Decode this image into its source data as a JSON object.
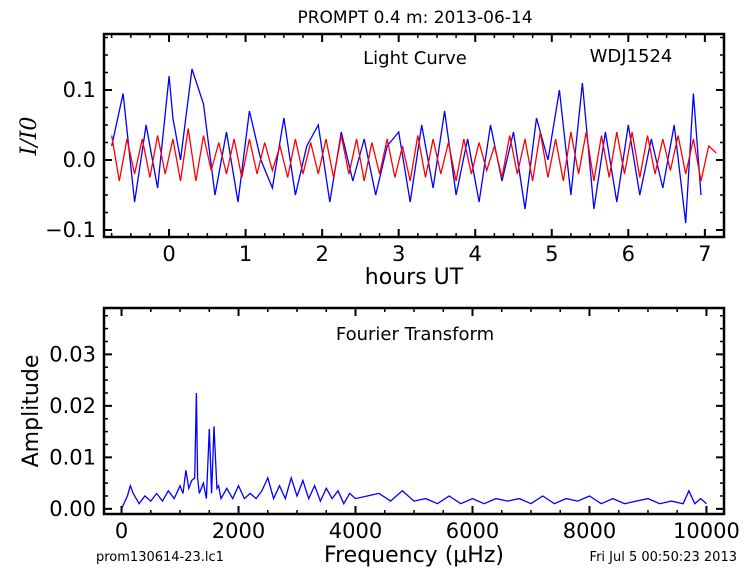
{
  "figure": {
    "title": "PROMPT 0.4 m:  2013-06-14",
    "footer_left": "prom130614-23.lc1",
    "footer_right": "Fri Jul  5 00:50:23 2013"
  },
  "chart_data": [
    {
      "type": "line",
      "title": "Light Curve",
      "annotation": "WDJ1524",
      "xlabel": "hours UT",
      "ylabel": "I/I0",
      "xlim": [
        -0.85,
        7.25
      ],
      "ylim": [
        -0.11,
        0.18
      ],
      "xticks": [
        0,
        1,
        2,
        3,
        4,
        5,
        6,
        7
      ],
      "xtick_labels": [
        "0",
        "1",
        "2",
        "3",
        "4",
        "5",
        "6",
        "7"
      ],
      "yticks": [
        -0.1,
        0.0,
        0.1
      ],
      "ytick_labels": [
        "−0.1",
        "0.0",
        "0.1"
      ],
      "series": [
        {
          "color": "#0000ff",
          "x": [
            -0.75,
            -0.6,
            -0.45,
            -0.3,
            -0.15,
            0.0,
            0.05,
            0.15,
            0.3,
            0.45,
            0.6,
            0.75,
            0.9,
            1.05,
            1.2,
            1.35,
            1.5,
            1.65,
            1.8,
            1.95,
            2.1,
            2.25,
            2.4,
            2.55,
            2.7,
            2.85,
            3.0,
            3.15,
            3.3,
            3.45,
            3.6,
            3.75,
            3.9,
            4.05,
            4.2,
            4.35,
            4.5,
            4.65,
            4.8,
            4.95,
            5.1,
            5.25,
            5.4,
            5.55,
            5.7,
            5.85,
            6.0,
            6.15,
            6.3,
            6.45,
            6.6,
            6.75,
            6.85,
            6.95
          ],
          "y": [
            0.02,
            0.095,
            -0.06,
            0.05,
            -0.04,
            0.12,
            0.06,
            0.0,
            0.13,
            0.08,
            -0.05,
            0.04,
            -0.06,
            0.07,
            0.0,
            -0.04,
            0.06,
            -0.05,
            0.02,
            0.05,
            -0.06,
            0.04,
            -0.03,
            0.03,
            -0.05,
            0.02,
            0.04,
            -0.06,
            0.05,
            -0.04,
            0.07,
            -0.05,
            0.03,
            -0.06,
            0.05,
            -0.03,
            0.04,
            -0.07,
            0.06,
            0.0,
            0.1,
            -0.05,
            0.11,
            -0.07,
            0.04,
            -0.06,
            0.05,
            -0.05,
            0.03,
            -0.04,
            0.05,
            -0.09,
            0.095,
            -0.05
          ]
        },
        {
          "color": "#ff0000",
          "x": [
            -0.75,
            -0.65,
            -0.55,
            -0.45,
            -0.35,
            -0.25,
            -0.15,
            -0.05,
            0.05,
            0.15,
            0.25,
            0.35,
            0.45,
            0.55,
            0.65,
            0.75,
            0.85,
            0.95,
            1.05,
            1.15,
            1.25,
            1.35,
            1.45,
            1.55,
            1.65,
            1.75,
            1.85,
            1.95,
            2.05,
            2.15,
            2.25,
            2.35,
            2.45,
            2.55,
            2.65,
            2.75,
            2.85,
            2.95,
            3.05,
            3.15,
            3.25,
            3.35,
            3.45,
            3.55,
            3.65,
            3.75,
            3.85,
            3.95,
            4.05,
            4.15,
            4.25,
            4.35,
            4.45,
            4.55,
            4.65,
            4.75,
            4.85,
            4.95,
            5.05,
            5.15,
            5.25,
            5.35,
            5.45,
            5.55,
            5.65,
            5.75,
            5.85,
            5.95,
            6.05,
            6.15,
            6.25,
            6.35,
            6.45,
            6.55,
            6.65,
            6.75,
            6.85,
            6.95,
            7.05,
            7.15
          ],
          "y": [
            0.035,
            -0.03,
            0.03,
            -0.02,
            0.03,
            -0.025,
            0.035,
            -0.02,
            0.03,
            -0.03,
            0.045,
            -0.03,
            0.035,
            -0.015,
            0.025,
            -0.02,
            0.03,
            -0.025,
            0.03,
            -0.02,
            0.025,
            -0.015,
            0.02,
            -0.025,
            0.03,
            -0.02,
            0.025,
            -0.02,
            0.03,
            -0.025,
            0.035,
            -0.02,
            0.03,
            -0.03,
            0.025,
            -0.02,
            0.03,
            -0.025,
            0.02,
            -0.03,
            0.035,
            -0.025,
            0.03,
            -0.02,
            0.025,
            -0.03,
            0.03,
            -0.02,
            0.025,
            -0.015,
            0.02,
            -0.025,
            0.035,
            -0.02,
            0.03,
            -0.03,
            0.04,
            -0.025,
            0.03,
            -0.03,
            0.04,
            -0.02,
            0.04,
            -0.03,
            0.035,
            -0.025,
            0.04,
            -0.02,
            0.04,
            -0.025,
            0.035,
            -0.02,
            0.03,
            -0.015,
            0.035,
            -0.02,
            0.03,
            -0.03,
            0.02,
            0.01
          ]
        }
      ]
    },
    {
      "type": "line",
      "title": "Fourier Transform",
      "xlabel": "Frequency (μHz)",
      "ylabel": "Amplitude",
      "xlim": [
        -300,
        10300
      ],
      "ylim": [
        -0.001,
        0.039
      ],
      "xticks": [
        0,
        2000,
        4000,
        6000,
        8000,
        10000
      ],
      "xtick_labels": [
        "0",
        "2000",
        "4000",
        "6000",
        "8000",
        "10000"
      ],
      "yticks": [
        0.0,
        0.01,
        0.02,
        0.03
      ],
      "ytick_labels": [
        "0.00",
        "0.01",
        "0.02",
        "0.03"
      ],
      "series": [
        {
          "color": "#0000ff",
          "x": [
            0,
            100,
            150,
            200,
            300,
            400,
            500,
            600,
            700,
            800,
            900,
            1000,
            1050,
            1100,
            1150,
            1200,
            1250,
            1280,
            1300,
            1330,
            1400,
            1450,
            1500,
            1540,
            1580,
            1630,
            1660,
            1700,
            1800,
            1900,
            2000,
            2100,
            2200,
            2300,
            2400,
            2500,
            2600,
            2700,
            2800,
            2900,
            3000,
            3100,
            3200,
            3300,
            3400,
            3500,
            3600,
            3700,
            3800,
            3900,
            4000,
            4200,
            4400,
            4600,
            4800,
            5000,
            5200,
            5400,
            5600,
            5800,
            6000,
            6200,
            6400,
            6600,
            6800,
            7000,
            7200,
            7400,
            7600,
            7800,
            8000,
            8200,
            8400,
            8600,
            8800,
            9000,
            9200,
            9400,
            9600,
            9700,
            9800,
            9900,
            10000
          ],
          "y": [
            0.0,
            0.0025,
            0.0045,
            0.003,
            0.001,
            0.0025,
            0.0015,
            0.003,
            0.0015,
            0.0035,
            0.002,
            0.0045,
            0.003,
            0.0075,
            0.004,
            0.0055,
            0.006,
            0.0225,
            0.006,
            0.003,
            0.005,
            0.002,
            0.0155,
            0.003,
            0.016,
            0.004,
            0.0045,
            0.002,
            0.004,
            0.002,
            0.0045,
            0.002,
            0.003,
            0.002,
            0.0035,
            0.006,
            0.002,
            0.0045,
            0.002,
            0.006,
            0.0025,
            0.0055,
            0.002,
            0.0045,
            0.0015,
            0.004,
            0.002,
            0.0035,
            0.001,
            0.003,
            0.002,
            0.0025,
            0.003,
            0.0015,
            0.0035,
            0.0015,
            0.002,
            0.001,
            0.0025,
            0.001,
            0.002,
            0.001,
            0.002,
            0.0015,
            0.002,
            0.001,
            0.0025,
            0.001,
            0.002,
            0.0015,
            0.0025,
            0.001,
            0.002,
            0.001,
            0.0015,
            0.002,
            0.001,
            0.0015,
            0.001,
            0.0035,
            0.001,
            0.002,
            0.001
          ]
        }
      ]
    }
  ]
}
